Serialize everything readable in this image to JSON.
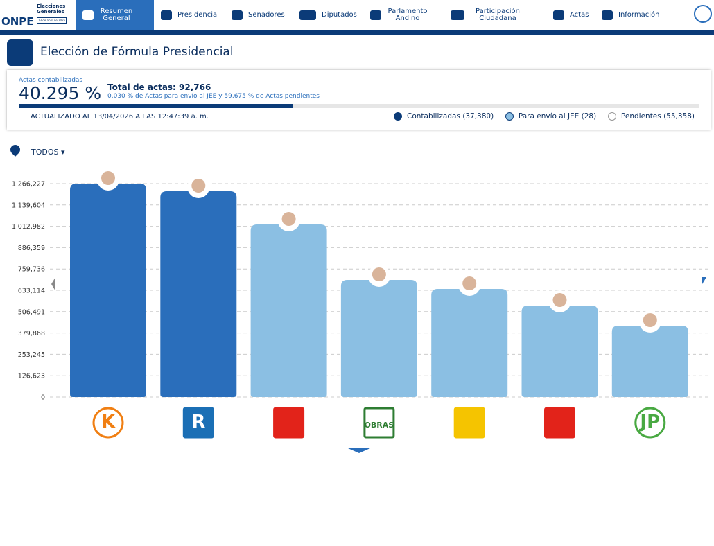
{
  "nav": {
    "brand": "ONPE",
    "brand_title": "Elecciones Generales",
    "brand_date": "13 de abril de 2026",
    "items": [
      "Resumen General",
      "Presidencial",
      "Senadores",
      "Diputados",
      "Parlamento Andino",
      "Participación Ciudadana",
      "Actas",
      "Información"
    ]
  },
  "header": {
    "title": "Elección de Fórmula Presidencial"
  },
  "summary": {
    "caption": "Actas contabilizadas",
    "percent_label": "40.295 %",
    "percent": 40.295,
    "total": "Total de actas: 92,766",
    "detail": "0.030 % de Actas para envío al JEE y 59.675 % de Actas pendientes",
    "updated": "ACTUALIZADO AL 13/04/2026 A LAS 12:47:39 a. m.",
    "legend": [
      "Contabilizadas (37,380)",
      "Para envío al JEE (28)",
      "Pendientes (55,358)"
    ]
  },
  "filter": "TODOS",
  "chart_data": {
    "type": "bar",
    "categories": [
      null,
      null,
      null,
      null,
      null,
      null,
      null
    ],
    "logo_texts": [
      "K",
      "R",
      null,
      "OBRAS",
      null,
      null,
      "JP"
    ],
    "values": [
      1266227,
      1221000,
      1023700,
      694800,
      641300,
      542700,
      423400
    ],
    "colors": [
      "#2a6ebb",
      "#2a6ebb",
      "#8bbfe3",
      "#8bbfe3",
      "#8bbfe3",
      "#8bbfe3",
      "#8bbfe3"
    ],
    "ylim": [
      0,
      1266227
    ],
    "yticks": [
      {
        "value": 0,
        "label": "0"
      },
      {
        "value": 126623,
        "label": "126,623"
      },
      {
        "value": 253245,
        "label": "253,245"
      },
      {
        "value": 379868,
        "label": "379,868"
      },
      {
        "value": 506491,
        "label": "506,491"
      },
      {
        "value": 633114,
        "label": "633,114"
      },
      {
        "value": 759736,
        "label": "759,736"
      },
      {
        "value": 886359,
        "label": "886,359"
      },
      {
        "value": 1012982,
        "label": "1'012,982"
      },
      {
        "value": 1139604,
        "label": "1'139,604"
      },
      {
        "value": 1266227,
        "label": "1'266,227"
      }
    ],
    "grid": true
  }
}
